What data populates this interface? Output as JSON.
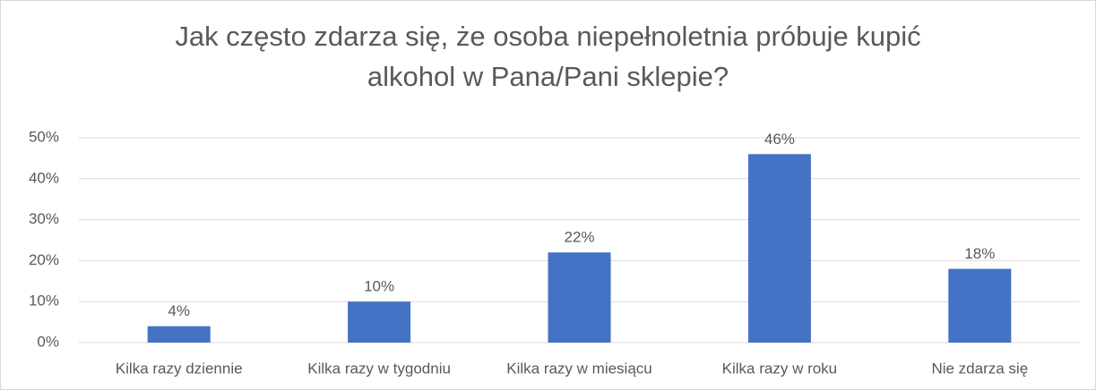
{
  "chart_data": {
    "type": "bar",
    "title": "Jak często zdarza się, że osoba niepełnoletnia próbuje kupić alkohol w Pana/Pani sklepie?",
    "categories": [
      "Kilka razy dziennie",
      "Kilka razy w tygodniu",
      "Kilka razy w miesiącu",
      "Kilka razy w roku",
      "Nie zdarza się"
    ],
    "values": [
      4,
      10,
      22,
      46,
      18
    ],
    "value_labels": [
      "4%",
      "10%",
      "22%",
      "46%",
      "18%"
    ],
    "color": "#4472c4",
    "ylim": [
      0,
      50
    ],
    "yticks": [
      {
        "value": 0,
        "label": "0%"
      },
      {
        "value": 10,
        "label": "10%"
      },
      {
        "value": 20,
        "label": "20%"
      },
      {
        "value": 30,
        "label": "30%"
      },
      {
        "value": 40,
        "label": "40%"
      },
      {
        "value": 50,
        "label": "50%"
      }
    ],
    "grid": true
  }
}
